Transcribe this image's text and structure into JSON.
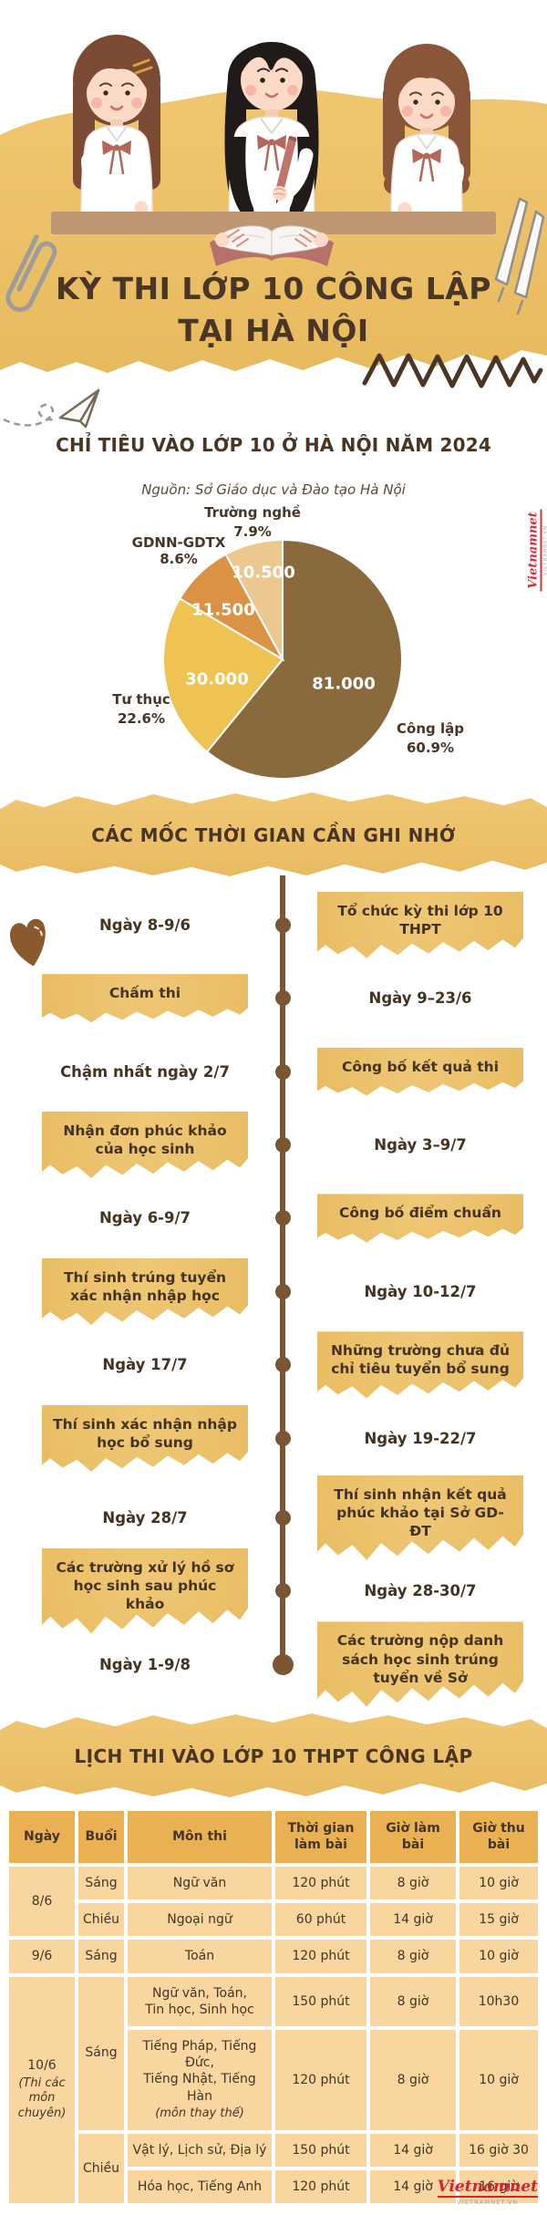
{
  "hero": {
    "title_line1": "KỲ THI LỚP 10 CÔNG LẬP",
    "title_line2": "TẠI HÀ NỘI"
  },
  "quota": {
    "heading": "CHỈ TIÊU VÀO LỚP 10 Ở HÀ NỘI NĂM 2024",
    "source": "Nguồn: Sở Giáo dục và Đào tạo Hà Nội"
  },
  "chart_data": {
    "type": "pie",
    "title": "CHỈ TIÊU VÀO LỚP 10 Ở HÀ NỘI NĂM 2024",
    "source": "Nguồn: Sở Giáo dục và Đào tạo Hà Nội",
    "start_angle_deg": 0,
    "direction": "clockwise",
    "slices": [
      {
        "label": "Công lập",
        "count_label": "81.000",
        "percent": 60.9,
        "percent_label": "60.9%",
        "color": "#8A693C"
      },
      {
        "label": "Tư thục",
        "count_label": "30.000",
        "percent": 22.6,
        "percent_label": "22.6%",
        "color": "#EFC254"
      },
      {
        "label": "GDNN-GDTX",
        "count_label": "11.500",
        "percent": 8.6,
        "percent_label": "8.6%",
        "color": "#DC9245"
      },
      {
        "label": "Trường nghề",
        "count_label": "10.500",
        "percent": 7.9,
        "percent_label": "7.9%",
        "color": "#ECC890"
      }
    ]
  },
  "timeline": {
    "heading": "CÁC MỐC THỜI GIAN CẦN GHI NHỚ",
    "items": [
      {
        "date": "Ngày 8-9/6",
        "event": "Tổ chức kỳ thi lớp 10 THPT",
        "box": "right"
      },
      {
        "date": "Ngày 9–23/6",
        "event": "Chấm thi",
        "box": "left"
      },
      {
        "date": "Chậm nhất ngày 2/7",
        "event": "Công bố kết quả thi",
        "box": "right"
      },
      {
        "date": "Ngày 3–9/7",
        "event": "Nhận đơn phúc khảo của học sinh",
        "box": "left"
      },
      {
        "date": "Ngày 6-9/7",
        "event": "Công bố điểm chuẩn",
        "box": "right"
      },
      {
        "date": "Ngày 10-12/7",
        "event": "Thí sinh trúng tuyển xác nhận nhập học",
        "box": "left"
      },
      {
        "date": "Ngày 17/7",
        "event": "Những trường chưa đủ chỉ tiêu tuyển bổ sung",
        "box": "right"
      },
      {
        "date": "Ngày 19-22/7",
        "event": "Thí sinh xác nhận nhập học bổ sung",
        "box": "left"
      },
      {
        "date": "Ngày 28/7",
        "event": "Thí sinh nhận kết quả phúc khảo tại Sở GD-ĐT",
        "box": "right"
      },
      {
        "date": "Ngày 28-30/7",
        "event": "Các trường xử lý hồ sơ học sinh sau phúc khảo",
        "box": "left"
      },
      {
        "date": "Ngày 1-9/8",
        "event": "Các trường nộp danh sách học sinh trúng tuyển về Sở",
        "box": "right"
      }
    ]
  },
  "schedule": {
    "heading": "LỊCH THI VÀO LỚP 10 THPT CÔNG LẬP",
    "columns": [
      "Ngày",
      "Buổi",
      "Môn thi",
      "Thời gian làm bài",
      "Giờ làm bài",
      "Giờ thu bài"
    ],
    "rows": [
      [
        {
          "t": "8/6",
          "rs": 2
        },
        {
          "t": "Sáng"
        },
        {
          "t": "Ngữ văn"
        },
        {
          "t": "120 phút"
        },
        {
          "t": "8 giờ"
        },
        {
          "t": "10 giờ"
        }
      ],
      [
        {
          "t": "Chiều"
        },
        {
          "t": "Ngoại ngữ"
        },
        {
          "t": "60 phút"
        },
        {
          "t": "14 giờ"
        },
        {
          "t": "15 giờ"
        }
      ],
      [
        {
          "t": "9/6"
        },
        {
          "t": "Sáng"
        },
        {
          "t": "Toán"
        },
        {
          "t": "120 phút"
        },
        {
          "t": "8 giờ"
        },
        {
          "t": "10 giờ"
        }
      ],
      [
        {
          "t": "10/6",
          "sub": "(Thi các môn chuyên)",
          "rs": 4
        },
        {
          "t": "Sáng",
          "rs": 2
        },
        {
          "t": "Ngữ văn, Toán,\nTin học, Sinh học"
        },
        {
          "t": "150 phút"
        },
        {
          "t": "8 giờ"
        },
        {
          "t": "10h30"
        }
      ],
      [
        {
          "t": "Tiếng Pháp, Tiếng Đức,\nTiếng Nhật, Tiếng Hàn",
          "sub": "(môn thay thế)"
        },
        {
          "t": "120 phút"
        },
        {
          "t": "8 giờ"
        },
        {
          "t": "10 giờ"
        }
      ],
      [
        {
          "t": "Chiều",
          "rs": 2
        },
        {
          "t": "Vật lý, Lịch sử, Địa lý"
        },
        {
          "t": "150 phút"
        },
        {
          "t": "14 giờ"
        },
        {
          "t": "16 giờ 30"
        }
      ],
      [
        {
          "t": "Hóa học, Tiếng Anh"
        },
        {
          "t": "120 phút"
        },
        {
          "t": "14 giờ"
        },
        {
          "t": "16 giờ"
        }
      ]
    ]
  },
  "watermark": {
    "brand": "Vietnamnet",
    "brand_sub": "VIETNAMNET.VN"
  },
  "colors": {
    "gold": "#ECC26B",
    "gold_header": "#E9B151",
    "gold_cell": "#F9D5A0",
    "dark_brown_text": "#4A3422",
    "timeline_line": "#7A5632",
    "logo_red": "#D6212E"
  }
}
